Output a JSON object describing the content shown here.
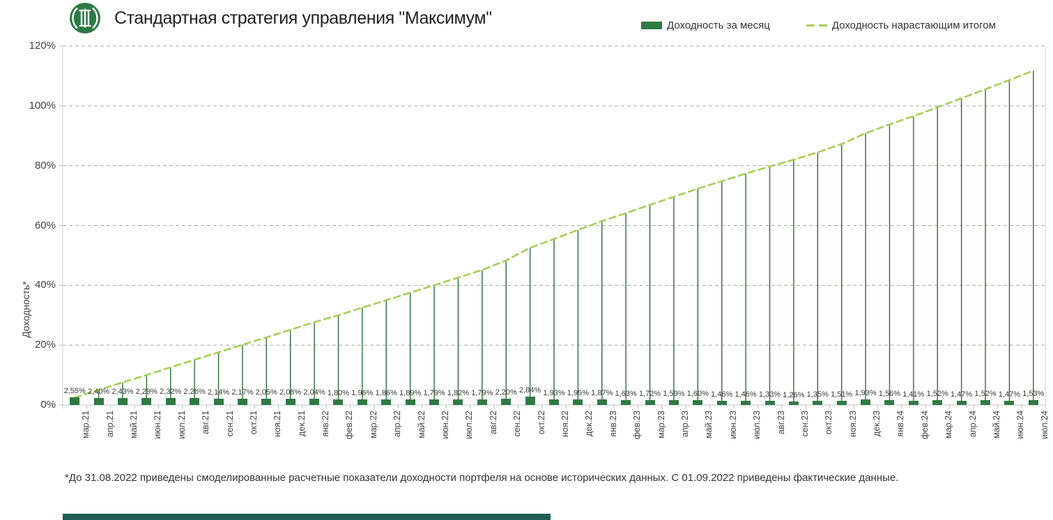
{
  "header": {
    "title": "Стандартная стратегия управления \"Максимум\"",
    "logo": "bank-monogram-logo"
  },
  "legend": {
    "monthly": {
      "label": "Доходность за месяц",
      "swatch": "solid-bar",
      "color": "#2f7a43"
    },
    "cumulative": {
      "label": "Доходность нарастающим итогом",
      "swatch": "dashed-line",
      "color": "#a6ce58"
    }
  },
  "footer": {
    "note": "*До 31.08.2022 приведены смоделированные расчетные показатели доходности портфеля на основе исторических данных. С 01.09.2022 приведены фактические данные."
  },
  "colors": {
    "bar": "#2f7a43",
    "drop_line": "#2a6b3c",
    "cumulative_line": "#a6ce58",
    "gridline": "#a6a6a6",
    "axis": "#d9d9d9",
    "tick": "#bfbfbf",
    "logo_green": "#2c7a45",
    "bottom_bar": "#1e5c55"
  },
  "chart_data": {
    "type": "bar",
    "title": "Стандартная стратегия управления \"Максимум\"",
    "xlabel": "",
    "ylabel": "Доходность*",
    "ylim": [
      0,
      120
    ],
    "ytick_labels": [
      "0%",
      "20%",
      "40%",
      "60%",
      "80%",
      "100%",
      "120%"
    ],
    "grid": "horizontal-dashed",
    "legend_position": "top-right",
    "categories": [
      "мар.21",
      "апр.21",
      "май.21",
      "июн.21",
      "июл.21",
      "авг.21",
      "сен.21",
      "окт.21",
      "ноя.21",
      "дек.21",
      "янв.22",
      "фев.22",
      "мар.22",
      "апр.22",
      "май.22",
      "июн.22",
      "июл.22",
      "авг.22",
      "сен.22",
      "окт.22",
      "ноя.22",
      "дек.22",
      "янв.23",
      "фев.23",
      "мар.23",
      "апр.23",
      "май.23",
      "июн.23",
      "июл.23",
      "авг.23",
      "сен.23",
      "окт.23",
      "ноя.23",
      "дек.23",
      "янв.24",
      "фев.24",
      "мар.24",
      "апр.24",
      "май.24",
      "июн.24",
      "июл.24"
    ],
    "series": [
      {
        "name": "Доходность за месяц",
        "type": "bar",
        "color": "#2f7a43",
        "values": [
          2.55,
          2.4,
          2.43,
          2.29,
          2.32,
          2.26,
          2.14,
          2.17,
          2.05,
          2.08,
          2.04,
          1.8,
          1.96,
          1.86,
          1.89,
          1.79,
          1.82,
          1.79,
          2.2,
          2.84,
          1.93,
          1.95,
          1.87,
          1.63,
          1.72,
          1.59,
          1.6,
          1.46,
          1.46,
          1.33,
          1.26,
          1.35,
          1.51,
          1.93,
          1.56,
          1.41,
          1.52,
          1.47,
          1.52,
          1.47,
          1.53
        ]
      },
      {
        "name": "Доходность нарастающим итогом",
        "type": "dashed-line",
        "color": "#a6ce58",
        "values": [
          2.55,
          5.01,
          7.56,
          10.03,
          12.58,
          15.12,
          17.59,
          20.14,
          22.6,
          25.15,
          27.7,
          30.0,
          32.55,
          35.02,
          37.57,
          40.03,
          42.58,
          45.13,
          48.33,
          52.54,
          55.48,
          58.51,
          61.48,
          64.11,
          66.93,
          69.59,
          72.3,
          74.82,
          77.37,
          79.73,
          81.99,
          84.45,
          87.23,
          90.85,
          93.82,
          96.56,
          99.54,
          102.48,
          105.56,
          108.58,
          111.77
        ]
      }
    ],
    "value_labels": [
      "2,55%",
      "2,40%",
      "2,43%",
      "2,29%",
      "2,32%",
      "2,26%",
      "2,14%",
      "2,17%",
      "2,05%",
      "2,08%",
      "2,04%",
      "1,80%",
      "1,96%",
      "1,86%",
      "1,89%",
      "1,79%",
      "1,82%",
      "1,79%",
      "2,20%",
      "2,84%",
      "1,93%",
      "1,95%",
      "1,87%",
      "1,63%",
      "1,72%",
      "1,59%",
      "1,60%",
      "1,46%",
      "1,46%",
      "1,33%",
      "1,26%",
      "1,35%",
      "1,51%",
      "1,93%",
      "1,56%",
      "1,41%",
      "1,52%",
      "1,47%",
      "1,52%",
      "1,47%",
      "1,53%"
    ]
  }
}
